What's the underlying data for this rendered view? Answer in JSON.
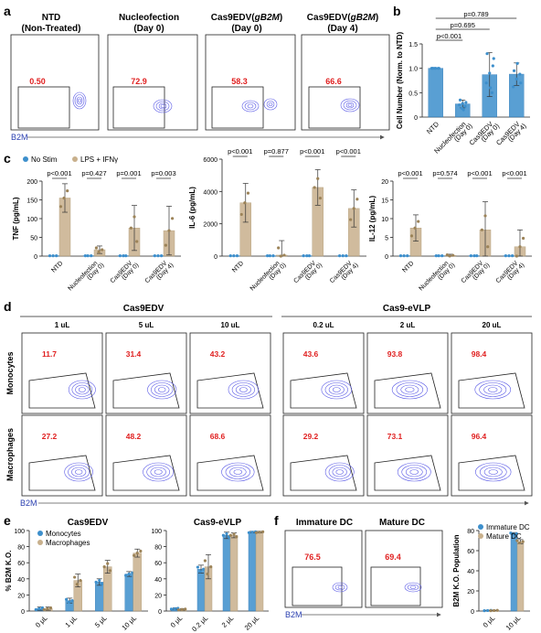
{
  "panel_labels": {
    "a": "a",
    "b": "b",
    "c": "c",
    "d": "d",
    "e": "e",
    "f": "f"
  },
  "panel_a": {
    "axis_label": "B2M",
    "samples": [
      {
        "title1": "NTD",
        "title2": "(Non-Treated)",
        "value": "0.50"
      },
      {
        "title1": "Nucleofection",
        "title2": "(Day 0)",
        "value": "72.9"
      },
      {
        "title1": "Cas9EDV(gB2M)",
        "title2": "(Day 0)",
        "value": "58.3"
      },
      {
        "title1": "Cas9EDV(gB2M)",
        "title2": "(Day 4)",
        "value": "66.6"
      }
    ]
  },
  "panel_d": {
    "group_titles": [
      "Cas9EDV",
      "Cas9-eVLP"
    ],
    "doses": [
      "1 uL",
      "5 uL",
      "10 uL",
      "0.2 uL",
      "2 uL",
      "20 uL"
    ],
    "row_labels": [
      "Monocytes",
      "Macrophages"
    ],
    "monocytes": [
      "11.7",
      "31.4",
      "43.2",
      "43.6",
      "93.8",
      "98.4"
    ],
    "macrophages": [
      "27.2",
      "48.2",
      "68.6",
      "29.2",
      "73.1",
      "96.4"
    ],
    "axis_label": "B2M"
  },
  "panel_f": {
    "titles": [
      "Immature DC",
      "Mature DC"
    ],
    "values": [
      "76.5",
      "69.4"
    ],
    "axis_label": "B2M"
  },
  "colors": {
    "blue": "#3d8fcc",
    "tan": "#c8b08c",
    "red": "#e02020",
    "contour": "#5a5ae6",
    "grey": "#7f7f7f"
  },
  "chart_data": [
    {
      "id": "b",
      "type": "bar",
      "categories": [
        "NTD",
        "Nucleofection (Day 0)",
        "Cas9EDV (Day 0)",
        "Cas9EDV (Day 4)"
      ],
      "values": [
        1.0,
        0.27,
        0.87,
        0.88
      ],
      "errors": [
        0.0,
        0.08,
        0.45,
        0.23
      ],
      "points": [
        [
          1,
          1,
          1,
          1,
          1,
          1,
          1
        ],
        [
          0.18,
          0.22,
          0.25,
          0.28,
          0.3,
          0.35,
          0.15
        ],
        [
          0.5,
          0.7,
          0.9,
          1.05,
          1.3,
          0.6,
          1.2
        ],
        [
          0.62,
          0.78,
          0.88,
          0.95,
          1.1,
          0.7
        ]
      ],
      "ylabel": "Cell Number (Norm. to NTD)",
      "ylim": [
        0,
        1.5
      ],
      "yticks": [
        0,
        0.5,
        1.0,
        1.5
      ],
      "brackets": [
        {
          "label": "p=0.789",
          "from": 0,
          "to": 3
        },
        {
          "label": "p=0.695",
          "from": 0,
          "to": 2
        },
        {
          "label": "p<0.001",
          "from": 0,
          "to": 1
        }
      ]
    },
    {
      "id": "c-tnf",
      "type": "bar",
      "legend": [
        "No Stim",
        "LPS + IFNγ"
      ],
      "categories": [
        "NTD",
        "Nucleofection (Day 0)",
        "Cas9EDV (Day 0)",
        "Cas9EDV (Day 4)"
      ],
      "series": [
        {
          "name": "No Stim",
          "values": [
            1,
            1,
            1,
            1
          ]
        },
        {
          "name": "LPS + IFNγ",
          "values": [
            155,
            17,
            75,
            68
          ]
        }
      ],
      "errors": [
        38,
        10,
        60,
        65
      ],
      "ylabel": "TNF (pg/mL)",
      "ylim": [
        0,
        200
      ],
      "yticks": [
        0,
        50,
        100,
        150,
        200
      ],
      "pvalues": [
        "p<0.001",
        "p=0.427",
        "p=0.001",
        "p=0.003"
      ]
    },
    {
      "id": "c-il6",
      "type": "bar",
      "categories": [
        "NTD",
        "Nucleofection (Day 0)",
        "Cas9EDV (Day 0)",
        "Cas9EDV (Day 4)"
      ],
      "series": [
        {
          "name": "No Stim",
          "values": [
            20,
            20,
            20,
            20
          ]
        },
        {
          "name": "LPS + IFNγ",
          "values": [
            3300,
            60,
            4250,
            2950
          ]
        }
      ],
      "errors": [
        1200,
        900,
        1100,
        1150
      ],
      "ylabel": "IL-6 (pg/mL)",
      "ylim": [
        0,
        6000
      ],
      "yticks": [
        0,
        2000,
        4000,
        6000
      ],
      "pvalues": [
        "p<0.001",
        "p=0.877",
        "p<0.001",
        "p<0.001"
      ]
    },
    {
      "id": "c-il12",
      "type": "bar",
      "categories": [
        "NTD",
        "Nucleofection (Day 0)",
        "Cas9EDV (Day 0)",
        "Cas9EDV (Day 4)"
      ],
      "series": [
        {
          "name": "No Stim",
          "values": [
            0.1,
            0.1,
            0.1,
            0.1
          ]
        },
        {
          "name": "LPS + IFNγ",
          "values": [
            7.5,
            0.2,
            7,
            2.5
          ]
        }
      ],
      "errors": [
        3.5,
        0.3,
        7.5,
        4.5
      ],
      "ylabel": "IL-12 (pg/mL)",
      "ylim": [
        0,
        20
      ],
      "yticks": [
        0,
        5,
        10,
        15,
        20
      ],
      "pvalues": [
        "p<0.001",
        "p=0.574",
        "p<0.001",
        "p<0.001"
      ]
    },
    {
      "id": "e-left",
      "type": "bar",
      "title": "Cas9EDV",
      "legend": [
        "Monocytes",
        "Macrophages"
      ],
      "categories": [
        "0 μL",
        "1 μL",
        "5 μL",
        "10 μL"
      ],
      "series": [
        {
          "name": "Monocytes",
          "values": [
            3,
            13,
            36,
            46
          ]
        },
        {
          "name": "Macrophages",
          "values": [
            3,
            38,
            55,
            72
          ]
        }
      ],
      "errors": [
        [
          2,
          3,
          4,
          3
        ],
        [
          2,
          8,
          8,
          5
        ]
      ],
      "ylabel": "% B2M K.O.",
      "ylim": [
        0,
        100
      ],
      "yticks": [
        0,
        20,
        40,
        60,
        80,
        100
      ]
    },
    {
      "id": "e-right",
      "type": "bar",
      "title": "Cas9-eVLP",
      "categories": [
        "0 μL",
        "0.2 μL",
        "2 μL",
        "20 μL"
      ],
      "series": [
        {
          "name": "Monocytes",
          "values": [
            3,
            52,
            94,
            98
          ]
        },
        {
          "name": "Macrophages",
          "values": [
            2,
            55,
            94,
            98
          ]
        }
      ],
      "errors": [
        [
          1,
          5,
          4,
          1
        ],
        [
          1,
          15,
          3,
          1
        ]
      ],
      "ylim": [
        0,
        100
      ],
      "yticks": [
        0,
        20,
        40,
        60,
        80,
        100
      ]
    },
    {
      "id": "f-bar",
      "type": "bar",
      "legend": [
        "Immature DC",
        "Mature DC"
      ],
      "categories": [
        "0 μL",
        "10 μL"
      ],
      "series": [
        {
          "name": "Immature DC",
          "values": [
            0.5,
            77
          ]
        },
        {
          "name": "Mature DC",
          "values": [
            0.5,
            69
          ]
        }
      ],
      "errors": [
        [
          0.3,
          1
        ],
        [
          0.3,
          2
        ]
      ],
      "ylabel": "B2M K.O. Population",
      "ylim": [
        0,
        80
      ],
      "yticks": [
        0,
        20,
        40,
        60,
        80
      ]
    }
  ]
}
